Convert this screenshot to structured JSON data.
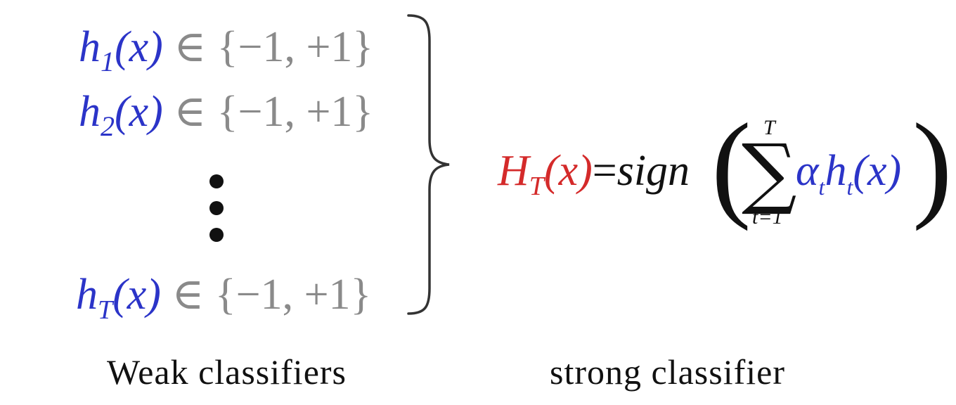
{
  "weak_rows": [
    {
      "fn": "h",
      "sub": "1",
      "arg": "(x)",
      "member": "∈",
      "set": "{−1, +1}"
    },
    {
      "fn": "h",
      "sub": "2",
      "arg": "(x)",
      "member": "∈",
      "set": "{−1, +1}"
    },
    {
      "fn": "h",
      "sub": "T",
      "arg": "(x)",
      "member": "∈",
      "set": "{−1, +1}"
    }
  ],
  "strong": {
    "fn": "H",
    "sub": "T",
    "arg": "(x)",
    "eq": "=",
    "sign": "sign",
    "sum_top": "T",
    "sum_bottom": "t=1",
    "alpha": "α",
    "alpha_sub": "t",
    "h": "h",
    "h_sub": "t",
    "h_arg": "(x)"
  },
  "labels": {
    "weak": "Weak  classifiers",
    "strong": "strong  classifier"
  },
  "colors": {
    "weak_fn": "#2b34c8",
    "strong_fn": "#d42a2a",
    "set": "#8a8a8a",
    "text": "#111111"
  }
}
